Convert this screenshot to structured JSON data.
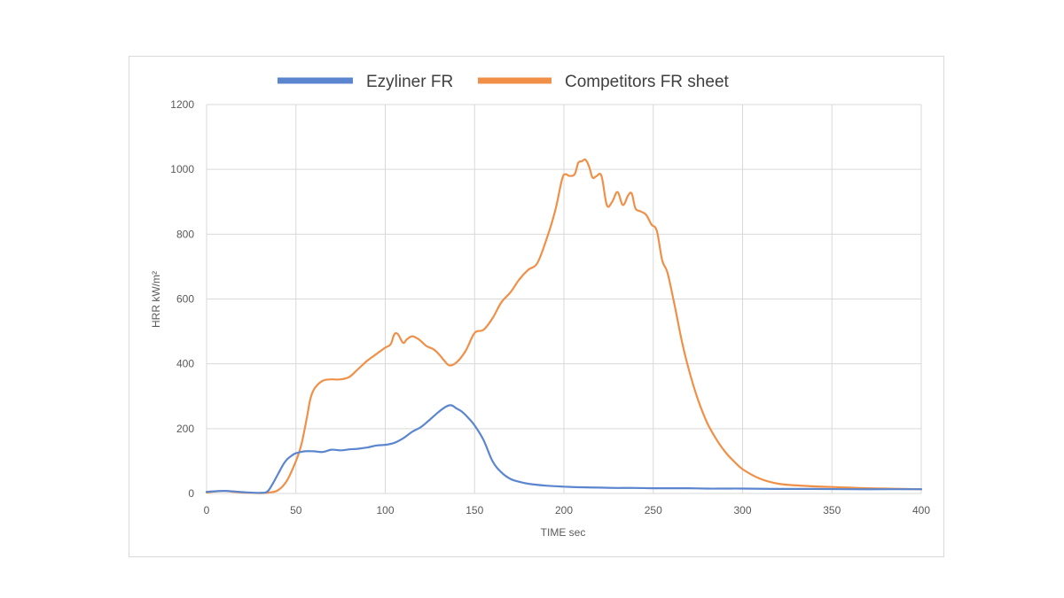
{
  "chart_data": {
    "type": "line",
    "xlabel": "TIME sec",
    "ylabel": "HRR kW/m²",
    "xlim": [
      0,
      400
    ],
    "ylim": [
      0,
      1200
    ],
    "xticks": [
      "0",
      "50",
      "100",
      "150",
      "200",
      "250",
      "300",
      "350",
      "400"
    ],
    "yticks": [
      "0",
      "200",
      "400",
      "600",
      "800",
      "1000",
      "1200"
    ],
    "grid": true,
    "legend_position": "top",
    "series": [
      {
        "name": "Ezyliner FR",
        "color": "#5b86cf",
        "x": [
          0,
          10,
          20,
          30,
          34,
          37,
          40,
          43,
          45,
          48,
          50,
          55,
          60,
          65,
          70,
          75,
          80,
          85,
          90,
          95,
          100,
          105,
          110,
          115,
          120,
          125,
          130,
          134,
          137,
          140,
          143,
          147,
          150,
          155,
          160,
          165,
          170,
          175,
          180,
          190,
          200,
          210,
          220,
          230,
          240,
          250,
          260,
          270,
          280,
          290,
          300,
          320,
          340,
          360,
          380,
          400
        ],
        "y": [
          5,
          8,
          4,
          2,
          6,
          30,
          60,
          90,
          105,
          118,
          124,
          130,
          130,
          128,
          135,
          133,
          136,
          138,
          142,
          148,
          150,
          156,
          170,
          190,
          205,
          228,
          252,
          268,
          272,
          262,
          252,
          230,
          210,
          165,
          100,
          65,
          45,
          36,
          30,
          24,
          21,
          19,
          18,
          17,
          17,
          16,
          16,
          16,
          15,
          15,
          15,
          14,
          14,
          13,
          13,
          13
        ]
      },
      {
        "name": "Competitors FR sheet",
        "color": "#f09048",
        "x": [
          0,
          5,
          10,
          15,
          20,
          25,
          30,
          35,
          40,
          45,
          50,
          53,
          56,
          58,
          60,
          63,
          66,
          70,
          75,
          80,
          85,
          90,
          95,
          100,
          103,
          105,
          107,
          110,
          112,
          115,
          118,
          120,
          123,
          127,
          130,
          133,
          136,
          140,
          145,
          150,
          155,
          160,
          165,
          170,
          175,
          180,
          185,
          190,
          195,
          199,
          201,
          203,
          206,
          208,
          210,
          212,
          214,
          216,
          218,
          221,
          224,
          227,
          230,
          233,
          236,
          238,
          240,
          243,
          246,
          249,
          252,
          255,
          258,
          262,
          266,
          270,
          275,
          280,
          285,
          290,
          295,
          300,
          310,
          320,
          330,
          340,
          350,
          360,
          370,
          380,
          390,
          400
        ],
        "y": [
          3,
          6,
          8,
          5,
          3,
          2,
          1,
          3,
          10,
          40,
          100,
          150,
          230,
          290,
          320,
          340,
          350,
          352,
          352,
          360,
          385,
          410,
          430,
          450,
          460,
          490,
          492,
          465,
          475,
          485,
          478,
          470,
          455,
          445,
          430,
          410,
          395,
          405,
          440,
          495,
          505,
          540,
          590,
          620,
          660,
          690,
          710,
          780,
          870,
          970,
          985,
          980,
          985,
          1020,
          1025,
          1030,
          1010,
          975,
          978,
          980,
          890,
          900,
          930,
          890,
          920,
          925,
          880,
          870,
          860,
          830,
          810,
          720,
          680,
          580,
          470,
          380,
          290,
          220,
          170,
          130,
          100,
          75,
          45,
          30,
          25,
          22,
          20,
          18,
          16,
          15,
          14,
          13
        ]
      }
    ]
  }
}
